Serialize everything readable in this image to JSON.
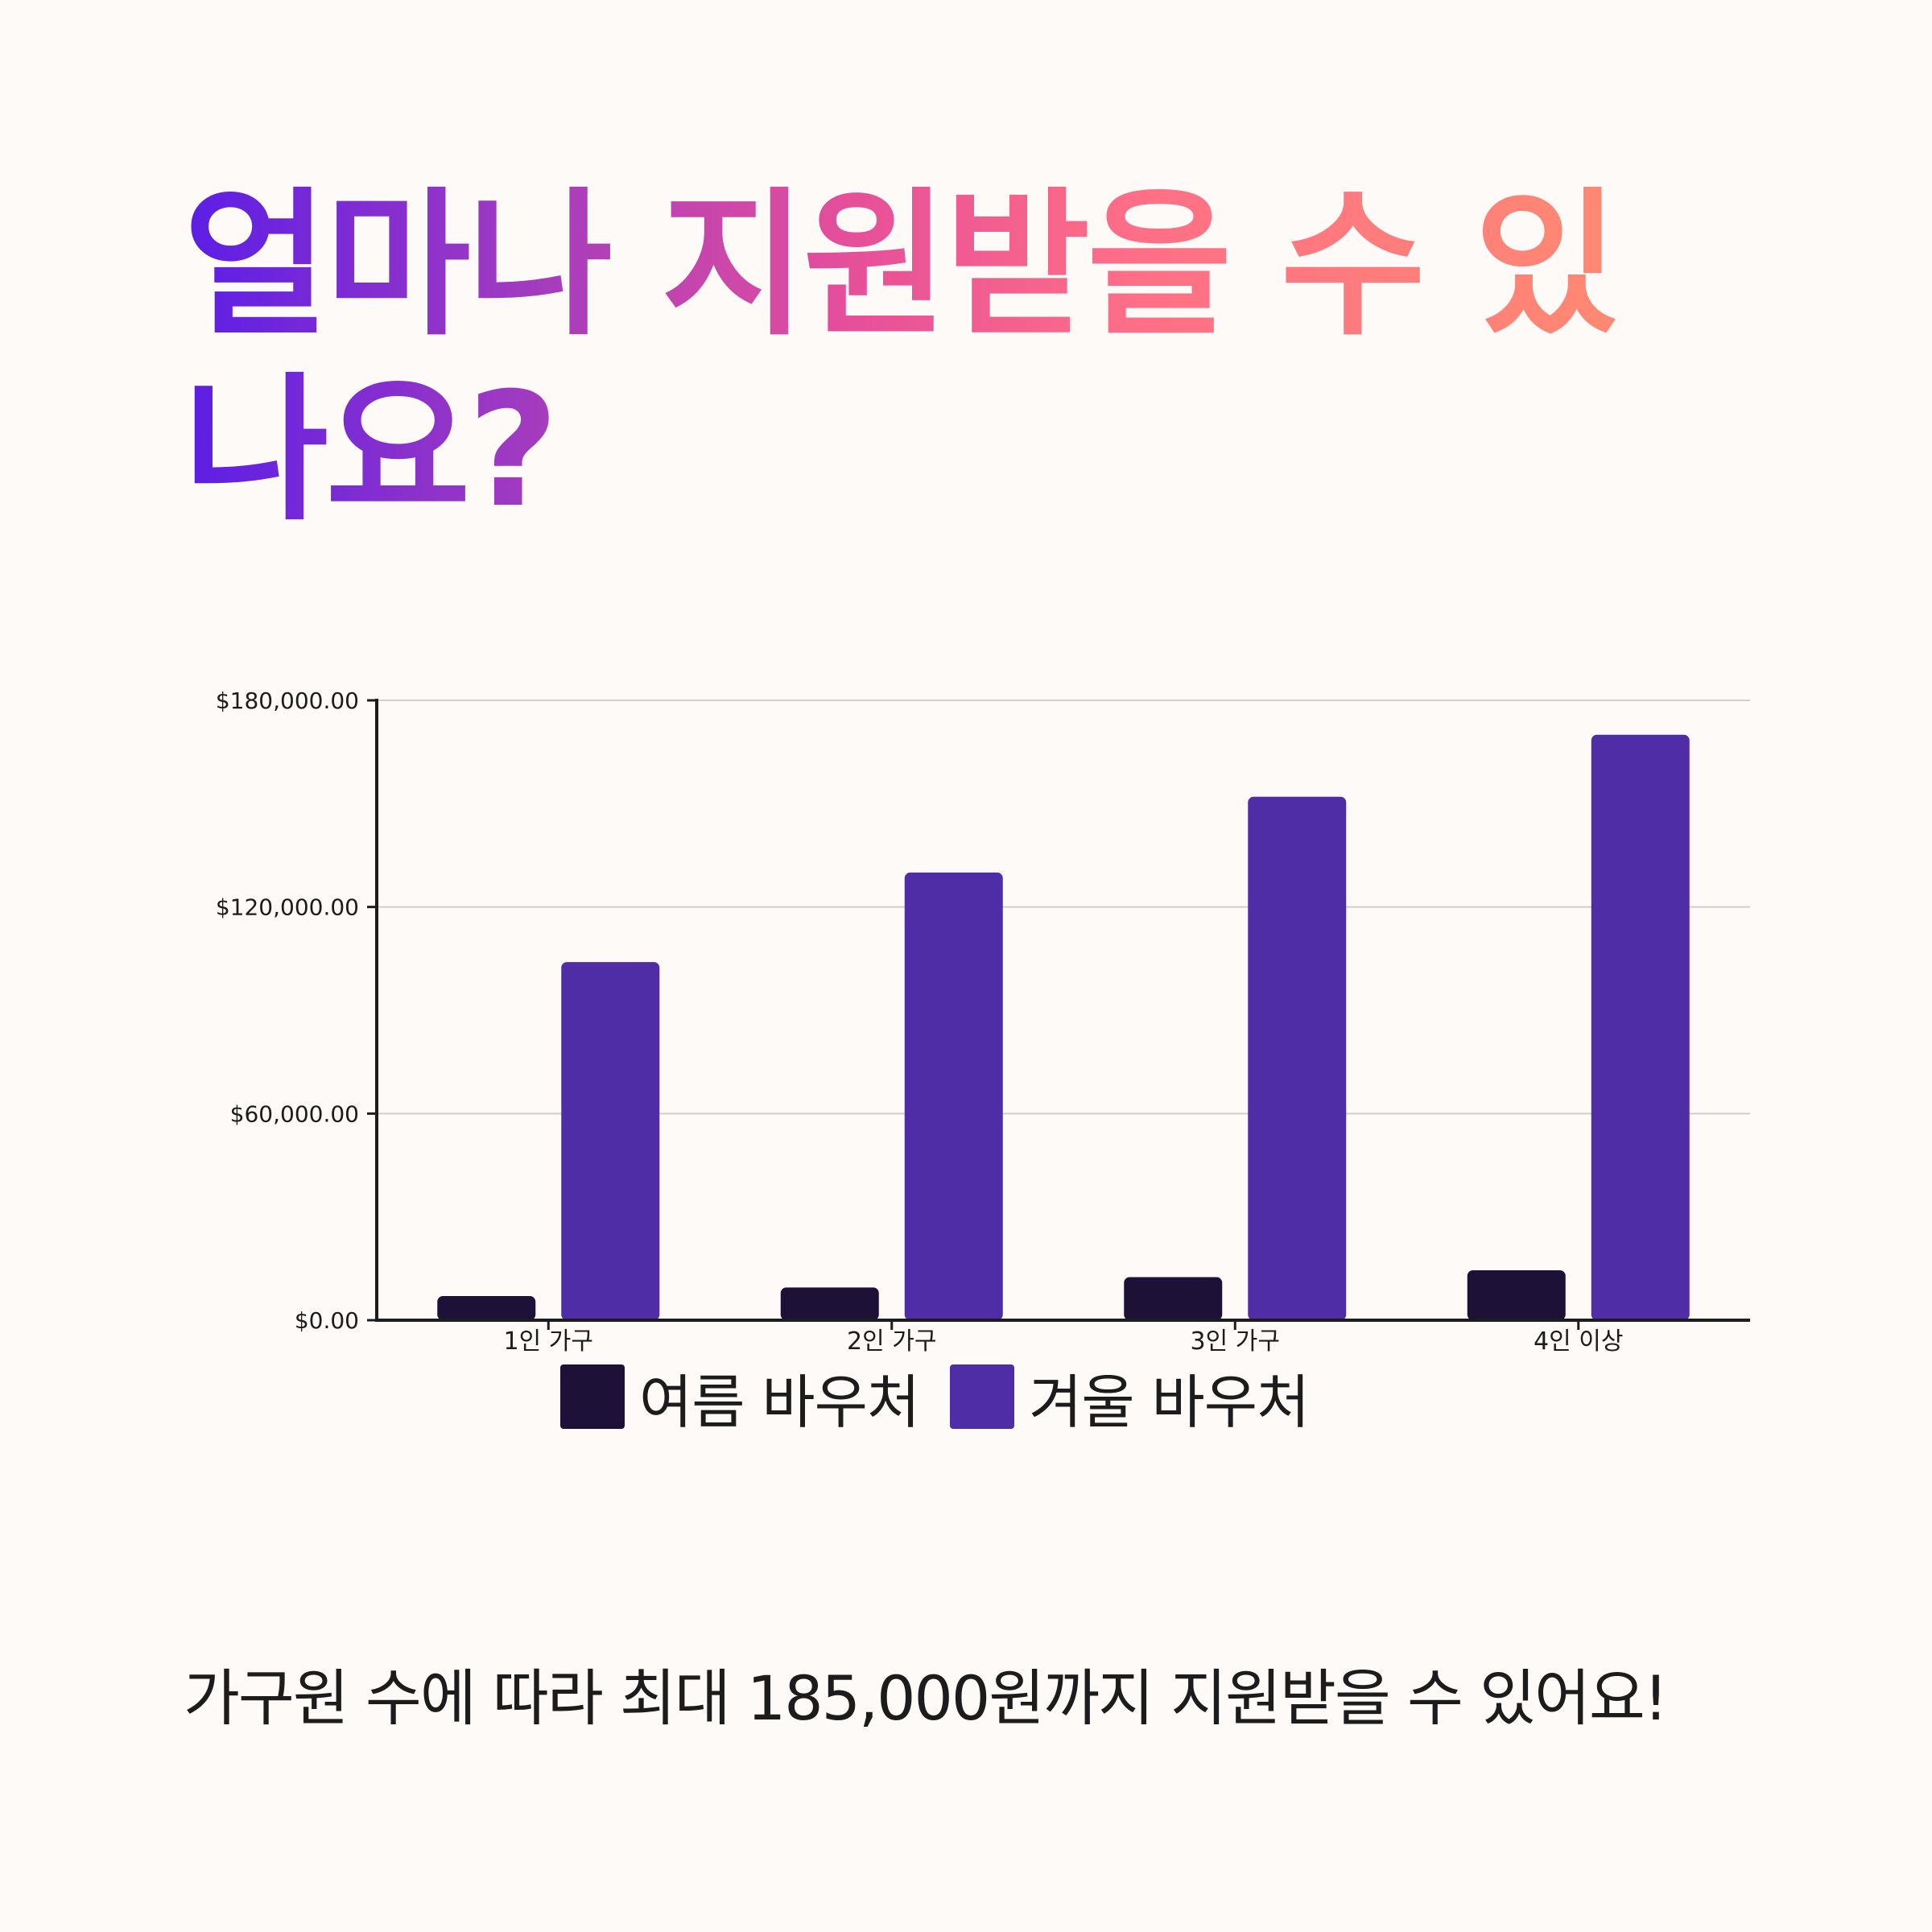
{
  "title": "얼마나 지원받을 수 있나요?",
  "footer_text": "가구원 수에 따라 최대 185,000원까지 지원받을 수 있어요!",
  "chart_data": {
    "type": "bar",
    "categories": [
      "1인 가구",
      "2인 가구",
      "3인 가구",
      "4인 이상"
    ],
    "series": [
      {
        "name": "여름 바우처",
        "color": "#1e1138",
        "values": [
          7000,
          9500,
          12500,
          14500
        ]
      },
      {
        "name": "겨울 바우처",
        "color": "#4f2da6",
        "values": [
          104000,
          130000,
          152000,
          170000
        ]
      }
    ],
    "ylim": [
      0,
      180000
    ],
    "yticks": [
      0,
      60000,
      120000,
      180000
    ],
    "ytick_labels": [
      "$0.00",
      "$60,000.00",
      "$120,000.00",
      "$180,000.00"
    ],
    "grid": true,
    "legend_position": "bottom-center"
  }
}
